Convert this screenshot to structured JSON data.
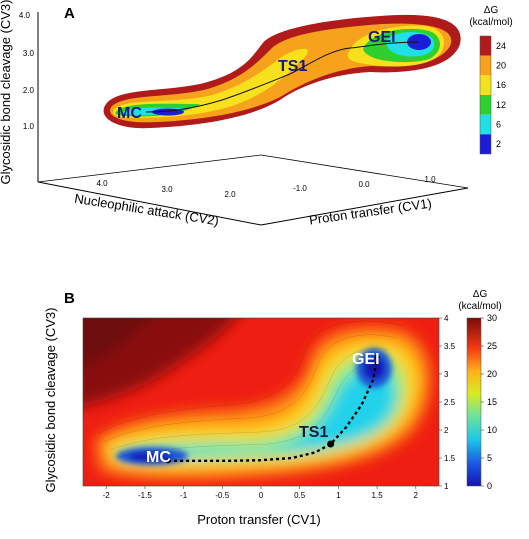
{
  "panel_a": {
    "letter": "A",
    "z_label": "Glycosidic bond cleavage (CV3)",
    "x_label": "Nucleophilic attack (CV2)",
    "y_label": "Proton transfer (CV1)",
    "z_ticks": [
      "4.0",
      "3.0",
      "2.0",
      "1.0"
    ],
    "x_ticks": [
      "4.0",
      "3.0",
      "2.0"
    ],
    "y_ticks": [
      "-1.0",
      "0.0",
      "1.0"
    ],
    "state_labels": [
      "MC",
      "TS1",
      "GEI"
    ],
    "colorbar_title_line1": "ΔG",
    "colorbar_title_line2": "(kcal/mol)",
    "colorbar_ticks": [
      "24",
      "20",
      "16",
      "12",
      "6",
      "2"
    ],
    "colorbar_colors": [
      "#b11a1a",
      "#f7a21c",
      "#f6e11c",
      "#2fcf2f",
      "#1fe0e6",
      "#1b1bd8"
    ]
  },
  "panel_b": {
    "letter": "B",
    "xlabel": "Proton transfer (CV1)",
    "ylabel": "Glycosidic bond cleavage (CV3)",
    "state_labels": [
      "MC",
      "TS1",
      "GEI"
    ],
    "colorbar_title_line1": "ΔG",
    "colorbar_title_line2": "(kcal/mol)",
    "colorbar_ticks": [
      "30",
      "25",
      "20",
      "15",
      "10",
      "5",
      "0"
    ]
  },
  "chart_data": [
    {
      "type": "area",
      "title": "",
      "projection": "3d",
      "series": [
        {
          "x": [
            3.9,
            3.2,
            2.6,
            2.0,
            1.4,
            0.9
          ],
          "y": [
            -1.2,
            -0.6,
            -0.1,
            0.3,
            0.8,
            1.4
          ],
          "z": [
            1.25,
            1.4,
            1.7,
            2.3,
            2.8,
            3.2
          ]
        }
      ],
      "color_levels": [
        24,
        20,
        16,
        12,
        6,
        2
      ],
      "zlim": [
        1.0,
        4.0
      ]
    },
    {
      "type": "heatmap",
      "title": "",
      "xlim": [
        -2.3,
        2.3
      ],
      "ylim": [
        1.0,
        4.0
      ],
      "x_ticks": [
        -2,
        -1.5,
        -1,
        -0.5,
        0,
        0.5,
        1,
        1.5,
        2
      ],
      "y_ticks": [
        1,
        1.5,
        2,
        2.5,
        3,
        3.5,
        4
      ],
      "color_range": [
        0,
        30
      ],
      "series": [
        {
          "x": [
            -1.2,
            -0.8,
            -0.4,
            0.0,
            0.4,
            0.7,
            0.9,
            1.1,
            1.3,
            1.45,
            1.5
          ],
          "y": [
            1.45,
            1.45,
            1.45,
            1.46,
            1.5,
            1.6,
            1.75,
            2.05,
            2.45,
            2.9,
            3.3
          ]
        }
      ],
      "state_points": [
        {
          "x": -1.2,
          "y": 1.45
        },
        {
          "x": 0.9,
          "y": 1.75
        },
        {
          "x": 1.5,
          "y": 3.3
        }
      ]
    }
  ]
}
